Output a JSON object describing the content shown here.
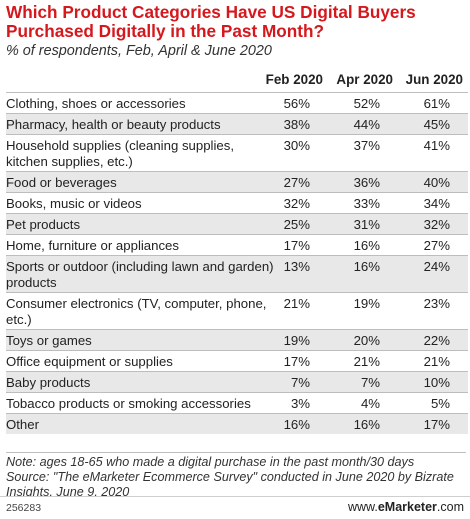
{
  "chart_data": {
    "type": "table",
    "title": "Which Product Categories Have US Digital Buyers Purchased Digitally in the Past Month?",
    "subtitle": "% of respondents, Feb, April & June 2020",
    "columns": [
      "Feb 2020",
      "Apr 2020",
      "Jun 2020"
    ],
    "rows": [
      {
        "label": "Clothing, shoes or accessories",
        "values": [
          "56%",
          "52%",
          "61%"
        ]
      },
      {
        "label": "Pharmacy, health or beauty products",
        "values": [
          "38%",
          "44%",
          "45%"
        ]
      },
      {
        "label": "Household supplies (cleaning supplies, kitchen supplies, etc.)",
        "values": [
          "30%",
          "37%",
          "41%"
        ]
      },
      {
        "label": "Food or beverages",
        "values": [
          "27%",
          "36%",
          "40%"
        ]
      },
      {
        "label": "Books, music or videos",
        "values": [
          "32%",
          "33%",
          "34%"
        ]
      },
      {
        "label": "Pet products",
        "values": [
          "25%",
          "31%",
          "32%"
        ]
      },
      {
        "label": "Home, furniture or appliances",
        "values": [
          "17%",
          "16%",
          "27%"
        ]
      },
      {
        "label": "Sports or outdoor (including lawn and garden) products",
        "values": [
          "13%",
          "16%",
          "24%"
        ]
      },
      {
        "label": "Consumer electronics (TV, computer, phone, etc.)",
        "values": [
          "21%",
          "19%",
          "23%"
        ]
      },
      {
        "label": "Toys or games",
        "values": [
          "19%",
          "20%",
          "22%"
        ]
      },
      {
        "label": "Office equipment or supplies",
        "values": [
          "17%",
          "21%",
          "21%"
        ]
      },
      {
        "label": "Baby products",
        "values": [
          "7%",
          "7%",
          "10%"
        ]
      },
      {
        "label": "Tobacco products or smoking accessories",
        "values": [
          "3%",
          "4%",
          "5%"
        ]
      },
      {
        "label": "Other",
        "values": [
          "16%",
          "16%",
          "17%"
        ]
      }
    ],
    "note": "Note: ages 18-65 who made a digital purchase in the past month/30 days",
    "source": "Source: \"The eMarketer Ecommerce Survey\" conducted in June 2020 by Bizrate Insights, June 9, 2020"
  },
  "footer": {
    "chart_id": "256283",
    "brand_prefix": "www.",
    "brand_e": "e",
    "brand_rest": "Marketer",
    "brand_suffix": ".com"
  },
  "colors": {
    "title": "#d5181d",
    "row_shade": "#e8e8e8",
    "rule": "#bdbdbd"
  }
}
